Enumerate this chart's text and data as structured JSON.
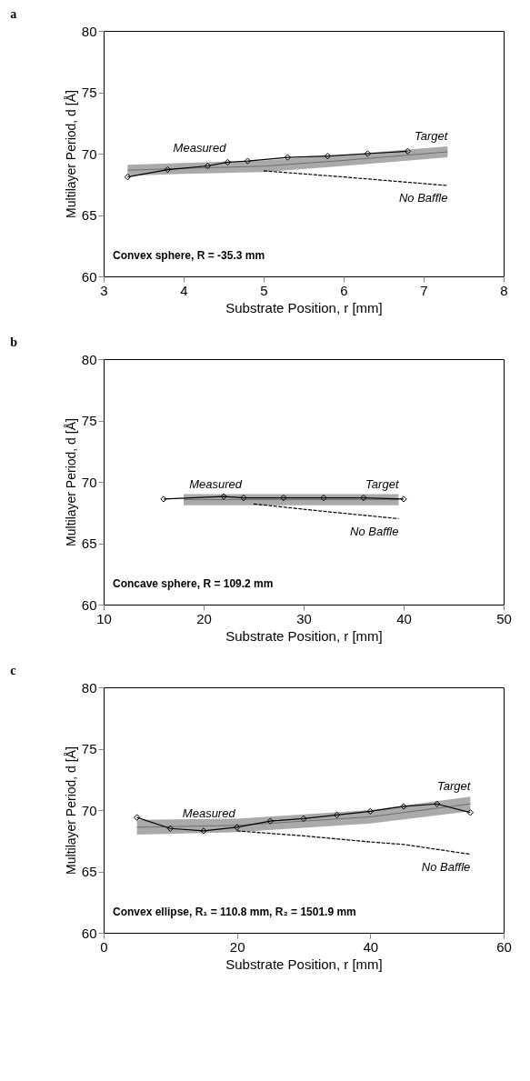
{
  "chart_data": [
    {
      "type": "line",
      "title": "a",
      "xlabel": "Substrate Position, r [mm]",
      "ylabel": "Multilayer Period, d [Å]",
      "xlim": [
        3,
        8
      ],
      "xticks": [
        3,
        4,
        5,
        6,
        7,
        8
      ],
      "ylim": [
        60,
        80
      ],
      "yticks": [
        60,
        65,
        70,
        75,
        80
      ],
      "grid": false,
      "legend": false,
      "annotations": [
        "Convex sphere, R = -35.3 mm"
      ],
      "series": [
        {
          "name": "Target",
          "type": "line",
          "color": "#555555",
          "marker": "none",
          "line_style": "solid",
          "x": [
            3.3,
            4,
            5,
            6,
            7.3
          ],
          "values": [
            68.65,
            68.8,
            68.98,
            69.45,
            70.15
          ],
          "lower": [
            68.2,
            68.35,
            68.5,
            69.0,
            69.7
          ],
          "upper": [
            69.1,
            69.25,
            69.45,
            69.9,
            70.6
          ]
        },
        {
          "name": "Measured",
          "type": "line",
          "color": "#000000",
          "marker": "diamond",
          "line_style": "solid",
          "x": [
            3.3,
            3.8,
            4.3,
            4.55,
            4.8,
            5.3,
            5.8,
            6.3,
            6.8
          ],
          "values": [
            68.1,
            68.7,
            69.0,
            69.3,
            69.4,
            69.7,
            69.8,
            70.0,
            70.2
          ]
        },
        {
          "name": "No Baffle",
          "type": "line",
          "color": "#000000",
          "marker": "none",
          "line_style": "dashed",
          "x": [
            5,
            6,
            7.3
          ],
          "values": [
            68.6,
            68.1,
            67.4
          ]
        }
      ]
    },
    {
      "type": "line",
      "title": "b",
      "xlabel": "Substrate Position, r [mm]",
      "ylabel": "Multilayer Period, d [Å]",
      "xlim": [
        10,
        50
      ],
      "xticks": [
        10,
        20,
        30,
        40,
        50
      ],
      "ylim": [
        60,
        80
      ],
      "yticks": [
        60,
        65,
        70,
        75,
        80
      ],
      "grid": false,
      "legend": false,
      "annotations": [
        "Concave sphere, R = 109.2 mm"
      ],
      "series": [
        {
          "name": "Target",
          "type": "line",
          "color": "#555555",
          "marker": "none",
          "line_style": "solid",
          "x": [
            18,
            39.5
          ],
          "values": [
            68.55,
            68.55
          ],
          "lower": [
            68.1,
            68.1
          ],
          "upper": [
            69.0,
            69.0
          ]
        },
        {
          "name": "Measured",
          "type": "line",
          "color": "#000000",
          "marker": "diamond",
          "line_style": "solid",
          "x": [
            16,
            22,
            24,
            28,
            32,
            36,
            40
          ],
          "values": [
            68.6,
            68.8,
            68.7,
            68.7,
            68.7,
            68.7,
            68.6
          ]
        },
        {
          "name": "No Baffle",
          "type": "line",
          "color": "#000000",
          "marker": "none",
          "line_style": "dashed",
          "x": [
            25,
            32,
            39.5
          ],
          "values": [
            68.2,
            67.6,
            67.0
          ]
        }
      ]
    },
    {
      "type": "line",
      "title": "c",
      "xlabel": "Substrate Position, r [mm]",
      "ylabel": "Multilayer Period, d [Å]",
      "xlim": [
        0,
        60
      ],
      "xticks": [
        0,
        20,
        40,
        60
      ],
      "ylim": [
        60,
        80
      ],
      "yticks": [
        60,
        65,
        70,
        75,
        80
      ],
      "grid": false,
      "legend": false,
      "annotations": [
        "Convex ellipse, R₁ = 110.8 mm, R₂ = 1501.9 mm"
      ],
      "series": [
        {
          "name": "Target",
          "type": "line",
          "color": "#555555",
          "marker": "none",
          "line_style": "solid",
          "x": [
            5,
            20,
            40,
            55
          ],
          "values": [
            68.6,
            68.75,
            69.45,
            70.5
          ],
          "lower": [
            68.0,
            68.2,
            68.9,
            69.9
          ],
          "upper": [
            69.2,
            69.3,
            70.0,
            71.1
          ]
        },
        {
          "name": "Measured",
          "type": "line",
          "color": "#000000",
          "marker": "diamond",
          "line_style": "solid",
          "x": [
            5,
            10,
            15,
            20,
            25,
            30,
            35,
            40,
            45,
            50,
            55
          ],
          "values": [
            69.4,
            68.5,
            68.3,
            68.6,
            69.1,
            69.3,
            69.6,
            69.9,
            70.3,
            70.5,
            69.8
          ]
        },
        {
          "name": "No Baffle",
          "type": "line",
          "color": "#000000",
          "marker": "none",
          "line_style": "dashed",
          "x": [
            20,
            30,
            40,
            45,
            55
          ],
          "values": [
            68.3,
            67.9,
            67.4,
            67.2,
            66.4
          ]
        }
      ]
    }
  ]
}
